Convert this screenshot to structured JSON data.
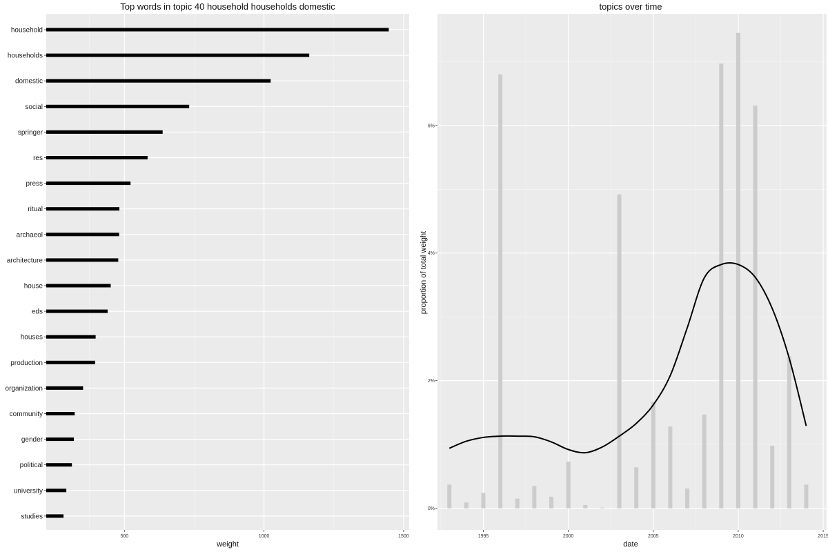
{
  "chart_data": [
    {
      "type": "bar",
      "orientation": "horizontal",
      "title": "Top words in topic 40 household households domestic",
      "xlabel": "weight",
      "ylabel": "",
      "xlim": [
        220,
        1520
      ],
      "xticks": [
        500,
        1000,
        1500
      ],
      "xtick_labels": [
        "500",
        "1000",
        "1500"
      ],
      "grid": true,
      "bar_color": "#000000",
      "categories": [
        "household",
        "households",
        "domestic",
        "social",
        "springer",
        "res",
        "press",
        "ritual",
        "archaeol",
        "architecture",
        "house",
        "eds",
        "houses",
        "production",
        "organization",
        "community",
        "gender",
        "political",
        "university",
        "studies"
      ],
      "values": [
        1447,
        1162,
        1024,
        732,
        637,
        583,
        522,
        482,
        481,
        478,
        451,
        440,
        397,
        395,
        352,
        322,
        319,
        312,
        292,
        282
      ]
    },
    {
      "type": "bar",
      "title": "topics over time",
      "xlabel": "date",
      "ylabel": "proportion of total weight",
      "xlim": [
        1992.3,
        2015.2
      ],
      "ylim": [
        -0.0034,
        0.0775
      ],
      "xticks": [
        1995,
        2000,
        2005,
        2010,
        2015
      ],
      "xtick_labels": [
        "1995",
        "2000",
        "2005",
        "2010",
        "2015"
      ],
      "yticks": [
        0,
        0.02,
        0.04,
        0.06
      ],
      "ytick_labels": [
        "0%",
        "2%",
        "4%",
        "6%"
      ],
      "grid": true,
      "bar_color": "#cccccc",
      "line_color": "#000000",
      "series": [
        {
          "type": "bar",
          "x": [
            1993,
            1994,
            1995,
            1996,
            1997,
            1998,
            1999,
            2000,
            2001,
            2002,
            2003,
            2004,
            2005,
            2006,
            2007,
            2008,
            2009,
            2010,
            2011,
            2012,
            2013,
            2014
          ],
          "values": [
            0.0037,
            0.0009,
            0.0024,
            0.068,
            0.0015,
            0.0035,
            0.0018,
            0.0073,
            0.0005,
            0.0001,
            0.0492,
            0.0064,
            0.0167,
            0.0128,
            0.0031,
            0.0147,
            0.0697,
            0.0745,
            0.0631,
            0.0098,
            0.0238,
            0.0037
          ]
        },
        {
          "type": "line",
          "smooth": true,
          "x": [
            1993,
            1994,
            1995,
            1996,
            1997,
            1998,
            1999,
            2000,
            2001,
            2002,
            2003,
            2004,
            2005,
            2006,
            2007,
            2008,
            2009,
            2010,
            2011,
            2012,
            2013,
            2014
          ],
          "values": [
            0.0094,
            0.0105,
            0.0111,
            0.0113,
            0.0113,
            0.0112,
            0.0104,
            0.0092,
            0.0087,
            0.0096,
            0.0113,
            0.0133,
            0.0162,
            0.0208,
            0.0283,
            0.0361,
            0.0382,
            0.0382,
            0.0362,
            0.0313,
            0.0235,
            0.0129
          ]
        }
      ]
    }
  ]
}
